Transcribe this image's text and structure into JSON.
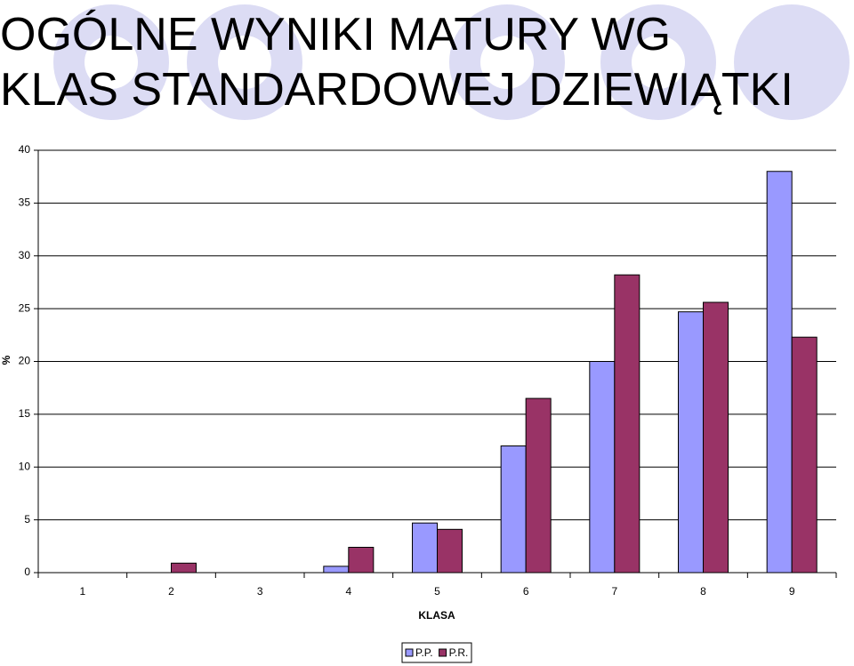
{
  "chart_data": {
    "type": "bar",
    "title": "OGÓLNE WYNIKI MATURY WG KLAS STANDARDOWEJ DZIEWIĄTKI",
    "y_label": "%",
    "x_label": "KLASA",
    "categories": [
      "1",
      "2",
      "3",
      "4",
      "5",
      "6",
      "7",
      "8",
      "9"
    ],
    "series": [
      {
        "name": "P.P.",
        "color": "#9999ff",
        "values": [
          0,
          0,
          0,
          0.6,
          4.7,
          12,
          20,
          24.7,
          38
        ]
      },
      {
        "name": "P.R.",
        "color": "#993366",
        "values": [
          0,
          0.9,
          0,
          2.4,
          4.1,
          16.5,
          28.2,
          25.6,
          22.3
        ]
      }
    ],
    "ylim": [
      0,
      40
    ],
    "yticks": [
      0,
      5,
      10,
      15,
      20,
      25,
      30,
      35,
      40
    ],
    "grid": true,
    "legend": "bottom"
  }
}
